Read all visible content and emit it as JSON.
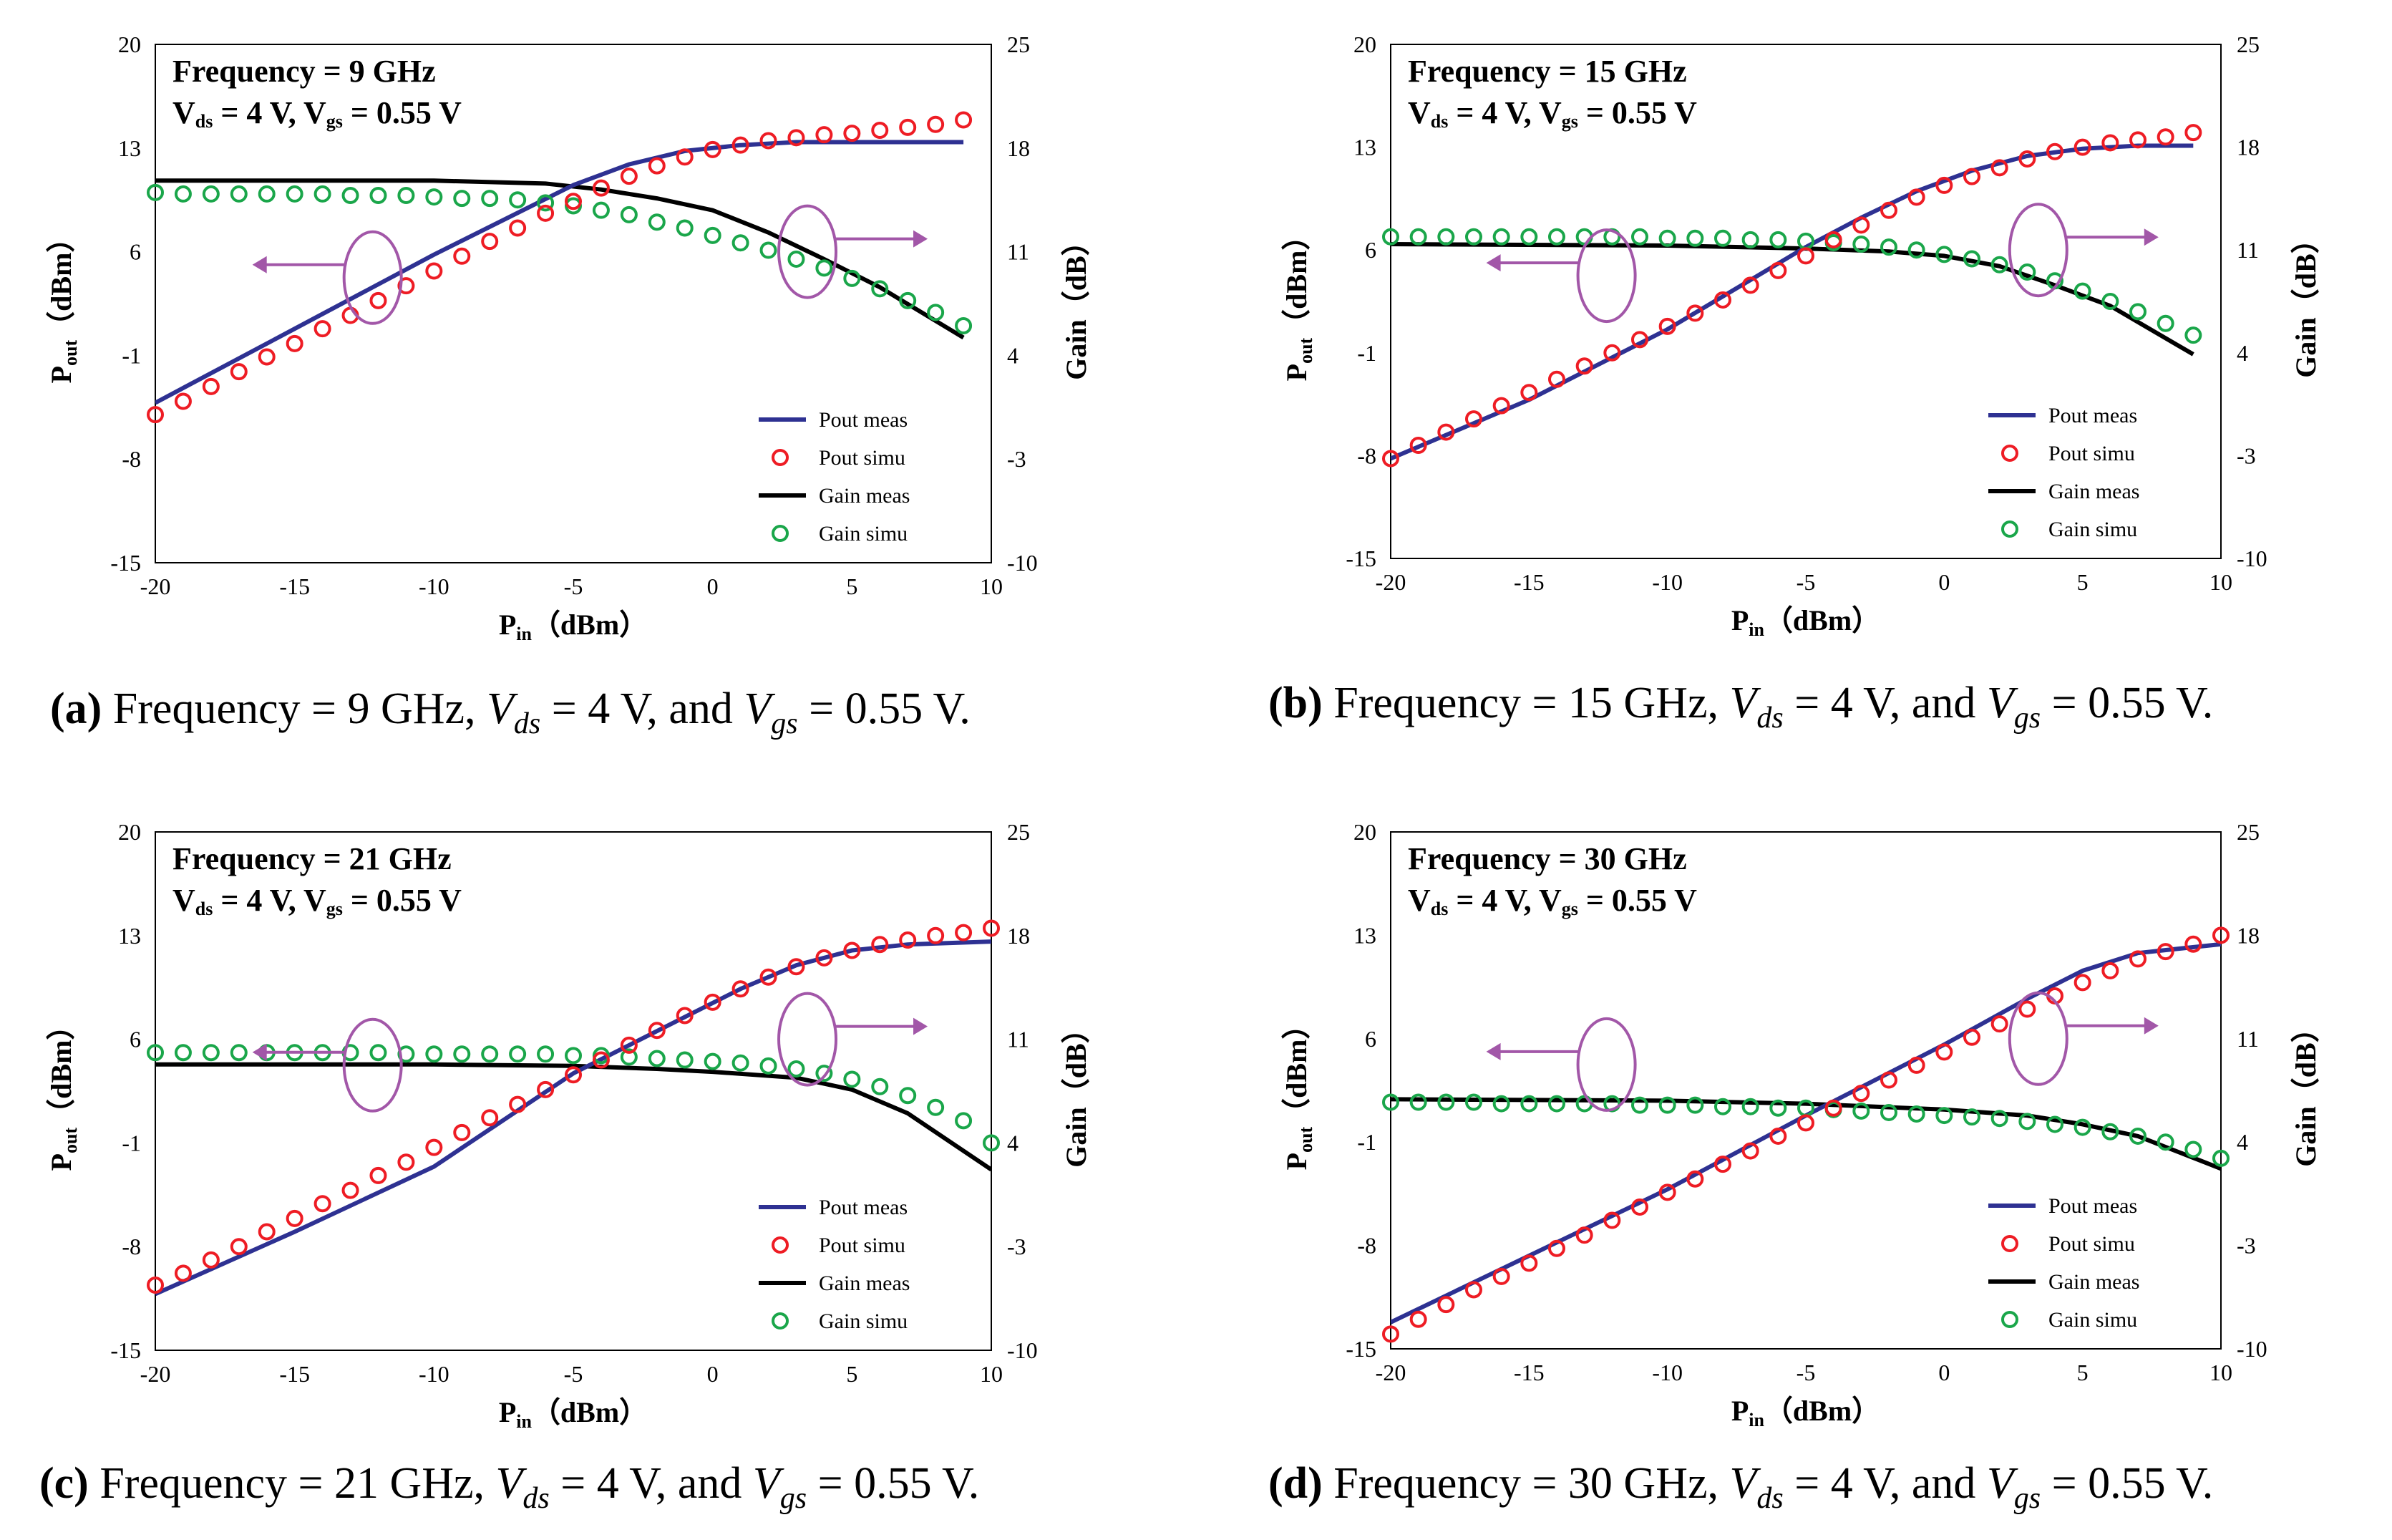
{
  "colors": {
    "pout_meas": "#2e3192",
    "pout_simu": "#ee1c24",
    "gain_meas": "#000000",
    "gain_simu": "#1aa64a",
    "annotation": "#a257a8"
  },
  "legend": {
    "pout_meas": "Pout meas",
    "pout_simu": "Pout simu",
    "gain_meas": "Gain meas",
    "gain_simu": "Gain simu"
  },
  "chart_data": [
    {
      "type": "line",
      "panel": "a",
      "caption": {
        "label": "(a)",
        "freq": "Frequency = 9 GHz,",
        "vds_val": "= 4 V, and",
        "vgs_val": "= 0.55 V."
      },
      "annotation": {
        "freq": "Frequency = 9 GHz",
        "bias": "= 4 V,",
        "bias2": "= 0.55 V"
      },
      "xlabel": "P",
      "xlabel_sub": "in",
      "xlabel_unit": "（dBm）",
      "ylabel": "P",
      "ylabel_sub": "out",
      "ylabel_unit": "（dBm）",
      "y2label": "Gain（dB）",
      "xlim": [
        -20,
        10
      ],
      "ylim": [
        -15,
        20
      ],
      "y2lim": [
        -10,
        25
      ],
      "xticks": [
        -20,
        -15,
        -10,
        -5,
        0,
        5,
        10
      ],
      "yticks": [
        -15,
        -8,
        -1,
        6,
        13,
        20
      ],
      "y2ticks": [
        -10,
        -3,
        4,
        11,
        18,
        25
      ],
      "pout_meas": [
        [
          -20,
          -4.2
        ],
        [
          -15,
          0.8
        ],
        [
          -10,
          5.8
        ],
        [
          -5,
          10.5
        ],
        [
          -3,
          11.9
        ],
        [
          -1,
          12.8
        ],
        [
          1,
          13.2
        ],
        [
          3,
          13.4
        ],
        [
          5,
          13.4
        ],
        [
          9,
          13.4
        ]
      ],
      "gain_meas": [
        [
          -20,
          15.8
        ],
        [
          -10,
          15.8
        ],
        [
          -6,
          15.6
        ],
        [
          -4,
          15.2
        ],
        [
          -2,
          14.6
        ],
        [
          0,
          13.8
        ],
        [
          2,
          12.3
        ],
        [
          4,
          10.5
        ],
        [
          6,
          8.6
        ],
        [
          9,
          5.2
        ]
      ],
      "pout_simu_x": [
        -20,
        -19,
        -18,
        -17,
        -16,
        -15,
        -14,
        -13,
        -12,
        -11,
        -10,
        -9,
        -8,
        -7,
        -6,
        -5,
        -4,
        -3,
        -2,
        -1,
        0,
        1,
        2,
        3,
        4,
        5,
        6,
        7,
        8,
        9
      ],
      "pout_simu_y": [
        -5.0,
        -4.1,
        -3.1,
        -2.1,
        -1.1,
        -0.2,
        0.8,
        1.7,
        2.7,
        3.7,
        4.7,
        5.7,
        6.7,
        7.6,
        8.6,
        9.4,
        10.3,
        11.1,
        11.8,
        12.4,
        12.9,
        13.2,
        13.5,
        13.7,
        13.9,
        14.0,
        14.2,
        14.4,
        14.6,
        14.9
      ],
      "gain_simu_x": [
        -20,
        -19,
        -18,
        -17,
        -16,
        -15,
        -14,
        -13,
        -12,
        -11,
        -10,
        -9,
        -8,
        -7,
        -6,
        -5,
        -4,
        -3,
        -2,
        -1,
        0,
        1,
        2,
        3,
        4,
        5,
        6,
        7,
        8,
        9
      ],
      "gain_simu_y": [
        15.0,
        14.9,
        14.9,
        14.9,
        14.9,
        14.9,
        14.9,
        14.8,
        14.8,
        14.8,
        14.7,
        14.6,
        14.6,
        14.5,
        14.3,
        14.1,
        13.8,
        13.5,
        13.0,
        12.6,
        12.1,
        11.6,
        11.1,
        10.5,
        9.9,
        9.2,
        8.5,
        7.7,
        6.9,
        6.0
      ]
    },
    {
      "type": "line",
      "panel": "b",
      "caption": {
        "label": "(b)",
        "freq": "Frequency = 15 GHz,",
        "vds_val": "= 4 V, and",
        "vgs_val": "= 0.55 V."
      },
      "annotation": {
        "freq": "Frequency = 15 GHz",
        "bias": "= 4 V,",
        "bias2": "= 0.55 V"
      },
      "xlabel": "P",
      "xlabel_sub": "in",
      "xlabel_unit": "（dBm）",
      "ylabel": "P",
      "ylabel_sub": "out",
      "ylabel_unit": "（dBm）",
      "y2label": "Gain（dB）",
      "xlim": [
        -20,
        10
      ],
      "ylim": [
        -15,
        20
      ],
      "y2lim": [
        -10,
        25
      ],
      "xticks": [
        -20,
        -15,
        -10,
        -5,
        0,
        5,
        10
      ],
      "yticks": [
        -15,
        -8,
        -1,
        6,
        13,
        20
      ],
      "y2ticks": [
        -10,
        -3,
        4,
        11,
        18,
        25
      ],
      "pout_meas": [
        [
          -20,
          -8.2
        ],
        [
          -15,
          -4.2
        ],
        [
          -10,
          0.6
        ],
        [
          -5,
          6.2
        ],
        [
          -3,
          8.2
        ],
        [
          -1,
          10.0
        ],
        [
          1,
          11.4
        ],
        [
          3,
          12.4
        ],
        [
          5,
          12.9
        ],
        [
          7,
          13.1
        ],
        [
          9,
          13.1
        ]
      ],
      "gain_meas": [
        [
          -20,
          11.4
        ],
        [
          -10,
          11.3
        ],
        [
          -5,
          11.1
        ],
        [
          -2,
          10.9
        ],
        [
          0,
          10.6
        ],
        [
          2,
          9.9
        ],
        [
          4,
          8.6
        ],
        [
          6,
          7.2
        ],
        [
          9,
          3.9
        ]
      ],
      "pout_simu_x": [
        -20,
        -19,
        -18,
        -17,
        -16,
        -15,
        -14,
        -13,
        -12,
        -11,
        -10,
        -9,
        -8,
        -7,
        -6,
        -5,
        -4,
        -3,
        -2,
        -1,
        0,
        1,
        2,
        3,
        4,
        5,
        6,
        7,
        8,
        9
      ],
      "pout_simu_y": [
        -8.2,
        -7.3,
        -6.4,
        -5.5,
        -4.6,
        -3.7,
        -2.8,
        -1.9,
        -1.0,
        -0.1,
        0.8,
        1.7,
        2.6,
        3.6,
        4.6,
        5.6,
        6.7,
        7.7,
        8.7,
        9.6,
        10.4,
        11.0,
        11.6,
        12.2,
        12.7,
        13.0,
        13.3,
        13.5,
        13.7,
        14.0
      ],
      "gain_simu_x": [
        -20,
        -19,
        -18,
        -17,
        -16,
        -15,
        -14,
        -13,
        -12,
        -11,
        -10,
        -9,
        -8,
        -7,
        -6,
        -5,
        -4,
        -3,
        -2,
        -1,
        0,
        1,
        2,
        3,
        4,
        5,
        6,
        7,
        8,
        9
      ],
      "gain_simu_y": [
        11.9,
        11.9,
        11.9,
        11.9,
        11.9,
        11.9,
        11.9,
        11.9,
        11.9,
        11.9,
        11.8,
        11.8,
        11.8,
        11.7,
        11.7,
        11.6,
        11.5,
        11.4,
        11.2,
        11.0,
        10.7,
        10.4,
        10.0,
        9.5,
        8.9,
        8.2,
        7.5,
        6.8,
        6.0,
        5.2
      ]
    },
    {
      "type": "line",
      "panel": "c",
      "caption": {
        "label": "(c)",
        "freq": "Frequency = 21 GHz,",
        "vds_val": "= 4 V, and",
        "vgs_val": "= 0.55 V."
      },
      "annotation": {
        "freq": "Frequency = 21 GHz",
        "bias": "= 4 V,",
        "bias2": "= 0.55 V"
      },
      "xlabel": "P",
      "xlabel_sub": "in",
      "xlabel_unit": "（dBm）",
      "ylabel": "P",
      "ylabel_sub": "out",
      "ylabel_unit": "（dBm）",
      "y2label": "Gain（dB）",
      "xlim": [
        -20,
        10
      ],
      "ylim": [
        -15,
        20
      ],
      "y2lim": [
        -10,
        25
      ],
      "xticks": [
        -20,
        -15,
        -10,
        -5,
        0,
        5,
        10
      ],
      "yticks": [
        -15,
        -8,
        -1,
        6,
        13,
        20
      ],
      "y2ticks": [
        -10,
        -3,
        4,
        11,
        18,
        25
      ],
      "pout_meas": [
        [
          -20,
          -11.2
        ],
        [
          -15,
          -7.0
        ],
        [
          -10,
          -2.6
        ],
        [
          -5,
          3.7
        ],
        [
          -3,
          5.6
        ],
        [
          -1,
          7.5
        ],
        [
          1,
          9.4
        ],
        [
          3,
          11.0
        ],
        [
          5,
          12.0
        ],
        [
          7,
          12.4
        ],
        [
          10,
          12.6
        ]
      ],
      "gain_meas": [
        [
          -20,
          9.3
        ],
        [
          -10,
          9.3
        ],
        [
          -5,
          9.2
        ],
        [
          -2,
          9.0
        ],
        [
          0,
          8.8
        ],
        [
          3,
          8.4
        ],
        [
          5,
          7.6
        ],
        [
          7,
          6.0
        ],
        [
          10,
          2.2
        ]
      ],
      "pout_simu_x": [
        -20,
        -19,
        -18,
        -17,
        -16,
        -15,
        -14,
        -13,
        -12,
        -11,
        -10,
        -9,
        -8,
        -7,
        -6,
        -5,
        -4,
        -3,
        -2,
        -1,
        0,
        1,
        2,
        3,
        4,
        5,
        6,
        7,
        8,
        9,
        10
      ],
      "pout_simu_y": [
        -10.6,
        -9.8,
        -8.9,
        -8.0,
        -7.0,
        -6.1,
        -5.1,
        -4.2,
        -3.2,
        -2.3,
        -1.3,
        -0.3,
        0.7,
        1.6,
        2.6,
        3.6,
        4.6,
        5.6,
        6.6,
        7.6,
        8.5,
        9.4,
        10.2,
        10.9,
        11.5,
        12.0,
        12.4,
        12.7,
        13.0,
        13.2,
        13.5
      ],
      "gain_simu_x": [
        -20,
        -19,
        -18,
        -17,
        -16,
        -15,
        -14,
        -13,
        -12,
        -11,
        -10,
        -9,
        -8,
        -7,
        -6,
        -5,
        -4,
        -3,
        -2,
        -1,
        0,
        1,
        2,
        3,
        4,
        5,
        6,
        7,
        8,
        9,
        10
      ],
      "gain_simu_y": [
        10.1,
        10.1,
        10.1,
        10.1,
        10.1,
        10.1,
        10.1,
        10.1,
        10.1,
        10.0,
        10.0,
        10.0,
        10.0,
        10.0,
        10.0,
        9.9,
        9.9,
        9.8,
        9.7,
        9.6,
        9.5,
        9.4,
        9.2,
        9.0,
        8.7,
        8.3,
        7.8,
        7.2,
        6.4,
        5.5,
        4.0
      ]
    },
    {
      "type": "line",
      "panel": "d",
      "caption": {
        "label": "(d)",
        "freq": "Frequency = 30 GHz,",
        "vds_val": "= 4 V, and",
        "vgs_val": "= 0.55 V."
      },
      "annotation": {
        "freq": "Frequency = 30 GHz",
        "bias": "= 4 V,",
        "bias2": "= 0.55 V"
      },
      "xlabel": "P",
      "xlabel_sub": "in",
      "xlabel_unit": "（dBm）",
      "ylabel": "P",
      "ylabel_sub": "out",
      "ylabel_unit": "（dBm）",
      "y2label": "Gain（dB）",
      "xlim": [
        -20,
        10
      ],
      "ylim": [
        -15,
        20
      ],
      "y2lim": [
        -10,
        25
      ],
      "xticks": [
        -20,
        -15,
        -10,
        -5,
        0,
        5,
        10
      ],
      "yticks": [
        -15,
        -8,
        -1,
        6,
        13,
        20
      ],
      "y2ticks": [
        -10,
        -3,
        4,
        11,
        18,
        25
      ],
      "pout_meas": [
        [
          -20,
          -13.2
        ],
        [
          -15,
          -8.7
        ],
        [
          -10,
          -4.2
        ],
        [
          -5,
          0.8
        ],
        [
          0,
          5.6
        ],
        [
          3,
          8.7
        ],
        [
          5,
          10.6
        ],
        [
          7,
          11.8
        ],
        [
          10,
          12.4
        ]
      ],
      "gain_meas": [
        [
          -20,
          6.9
        ],
        [
          -10,
          6.8
        ],
        [
          -5,
          6.6
        ],
        [
          0,
          6.2
        ],
        [
          3,
          5.8
        ],
        [
          5,
          5.2
        ],
        [
          7,
          4.4
        ],
        [
          10,
          2.2
        ]
      ],
      "pout_simu_x": [
        -20,
        -19,
        -18,
        -17,
        -16,
        -15,
        -14,
        -13,
        -12,
        -11,
        -10,
        -9,
        -8,
        -7,
        -6,
        -5,
        -4,
        -3,
        -2,
        -1,
        0,
        1,
        2,
        3,
        4,
        5,
        6,
        7,
        8,
        9,
        10
      ],
      "pout_simu_y": [
        -14.0,
        -13.0,
        -12.0,
        -11.0,
        -10.1,
        -9.2,
        -8.2,
        -7.3,
        -6.3,
        -5.4,
        -4.4,
        -3.5,
        -2.5,
        -1.6,
        -0.6,
        0.3,
        1.3,
        2.3,
        3.2,
        4.2,
        5.1,
        6.1,
        7.0,
        8.0,
        8.9,
        9.8,
        10.6,
        11.4,
        11.9,
        12.4,
        13.0
      ],
      "gain_simu_x": [
        -20,
        -19,
        -18,
        -17,
        -16,
        -15,
        -14,
        -13,
        -12,
        -11,
        -10,
        -9,
        -8,
        -7,
        -6,
        -5,
        -4,
        -3,
        -2,
        -1,
        0,
        1,
        2,
        3,
        4,
        5,
        6,
        7,
        8,
        9,
        10
      ],
      "gain_simu_y": [
        6.7,
        6.7,
        6.7,
        6.7,
        6.6,
        6.6,
        6.6,
        6.6,
        6.6,
        6.5,
        6.5,
        6.5,
        6.4,
        6.4,
        6.3,
        6.3,
        6.2,
        6.1,
        6.0,
        5.9,
        5.8,
        5.7,
        5.6,
        5.4,
        5.2,
        5.0,
        4.7,
        4.4,
        4.0,
        3.5,
        2.9
      ]
    }
  ]
}
